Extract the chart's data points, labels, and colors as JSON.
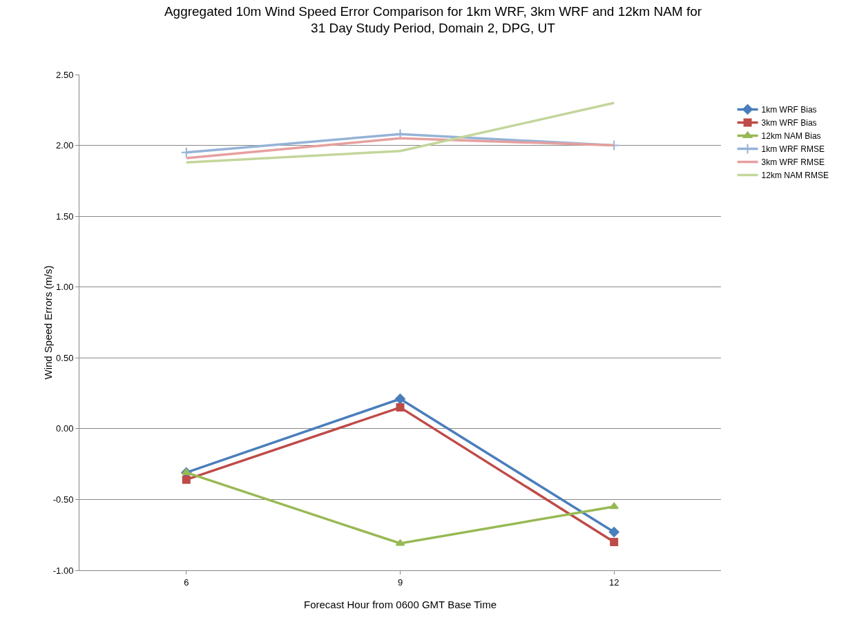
{
  "chart_data": {
    "type": "line",
    "title": "Aggregated 10m Wind Speed Error Comparison for 1km WRF, 3km WRF and 12km NAM for\n31 Day Study Period, Domain 2, DPG, UT",
    "xlabel": "Forecast Hour from 0600 GMT Base Time",
    "ylabel": "Wind Speed Errors (m/s)",
    "categories": [
      "6",
      "9",
      "12"
    ],
    "series": [
      {
        "name": "1km WRF Bias",
        "color": "#4a7ebb",
        "marker": "diamond",
        "values": [
          -0.31,
          0.21,
          -0.73
        ]
      },
      {
        "name": "3km WRF Bias",
        "color": "#be4b48",
        "marker": "square",
        "values": [
          -0.36,
          0.15,
          -0.8
        ]
      },
      {
        "name": "12km NAM Bias",
        "color": "#98b954",
        "marker": "triangle",
        "values": [
          -0.31,
          -0.81,
          -0.55
        ]
      },
      {
        "name": "1km WRF RMSE",
        "color": "#95b3d7",
        "marker": "cross",
        "values": [
          1.95,
          2.08,
          2.0
        ]
      },
      {
        "name": "3km WRF RMSE",
        "color": "#e6a09e",
        "marker": "none",
        "values": [
          1.91,
          2.05,
          2.0
        ]
      },
      {
        "name": "12km NAM RMSE",
        "color": "#c3d69b",
        "marker": "none",
        "values": [
          1.88,
          1.96,
          2.3
        ]
      }
    ],
    "ylim": [
      -1,
      2.5
    ],
    "yticks": [
      {
        "value": -1,
        "label": "-1.00"
      },
      {
        "value": -0.5,
        "label": "-0.50"
      },
      {
        "value": 0,
        "label": "0.00"
      },
      {
        "value": 0.5,
        "label": "0.50"
      },
      {
        "value": 1,
        "label": "1.00"
      },
      {
        "value": 1.5,
        "label": "1.50"
      },
      {
        "value": 2,
        "label": "2.00"
      },
      {
        "value": 2.5,
        "label": "2.50"
      }
    ],
    "grid": "y",
    "legend": "right"
  }
}
